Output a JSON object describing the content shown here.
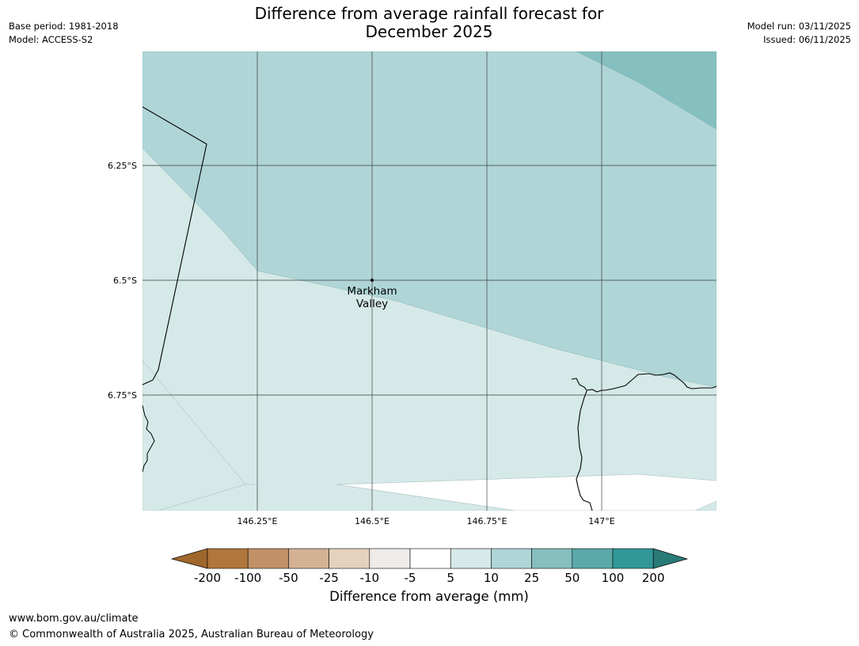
{
  "header": {
    "title_line1": "Difference from average rainfall forecast for",
    "title_line2": "December 2025",
    "base_period": "Base period: 1981-2018",
    "model": "Model: ACCESS-S2",
    "model_run": "Model run: 03/11/2025",
    "issued": "Issued: 06/11/2025"
  },
  "map": {
    "lat_labels": [
      "6.25°S",
      "6.5°S",
      "6.75°S"
    ],
    "lon_labels": [
      "146.25°E",
      "146.5°E",
      "146.75°E",
      "147°E"
    ],
    "place": {
      "name_line1": "Markham",
      "name_line2": "Valley"
    },
    "colors": {
      "band_5_10": "#d5e9e8",
      "band_10_25": "#afd5d6",
      "band_25_50": "#85bfbf",
      "gridline": "#3a3a3a",
      "coastline": "#000000"
    }
  },
  "colorbar": {
    "title": "Difference from average (mm)",
    "tick_labels": [
      "-200",
      "-100",
      "-50",
      "-25",
      "-10",
      "-5",
      "5",
      "10",
      "25",
      "50",
      "100",
      "200"
    ],
    "colors": [
      "#a0672c",
      "#b0763c",
      "#c29167",
      "#d3b194",
      "#e6d1bf",
      "#eeebe8",
      "#ffffff",
      "#d5e9e8",
      "#afd5d6",
      "#85bfbf",
      "#5ba9a9",
      "#339797",
      "#2a7a78"
    ]
  },
  "footer": {
    "url": "www.bom.gov.au/climate",
    "copyright": "© Commonwealth of Australia 2025, Australian Bureau of Meteorology"
  }
}
